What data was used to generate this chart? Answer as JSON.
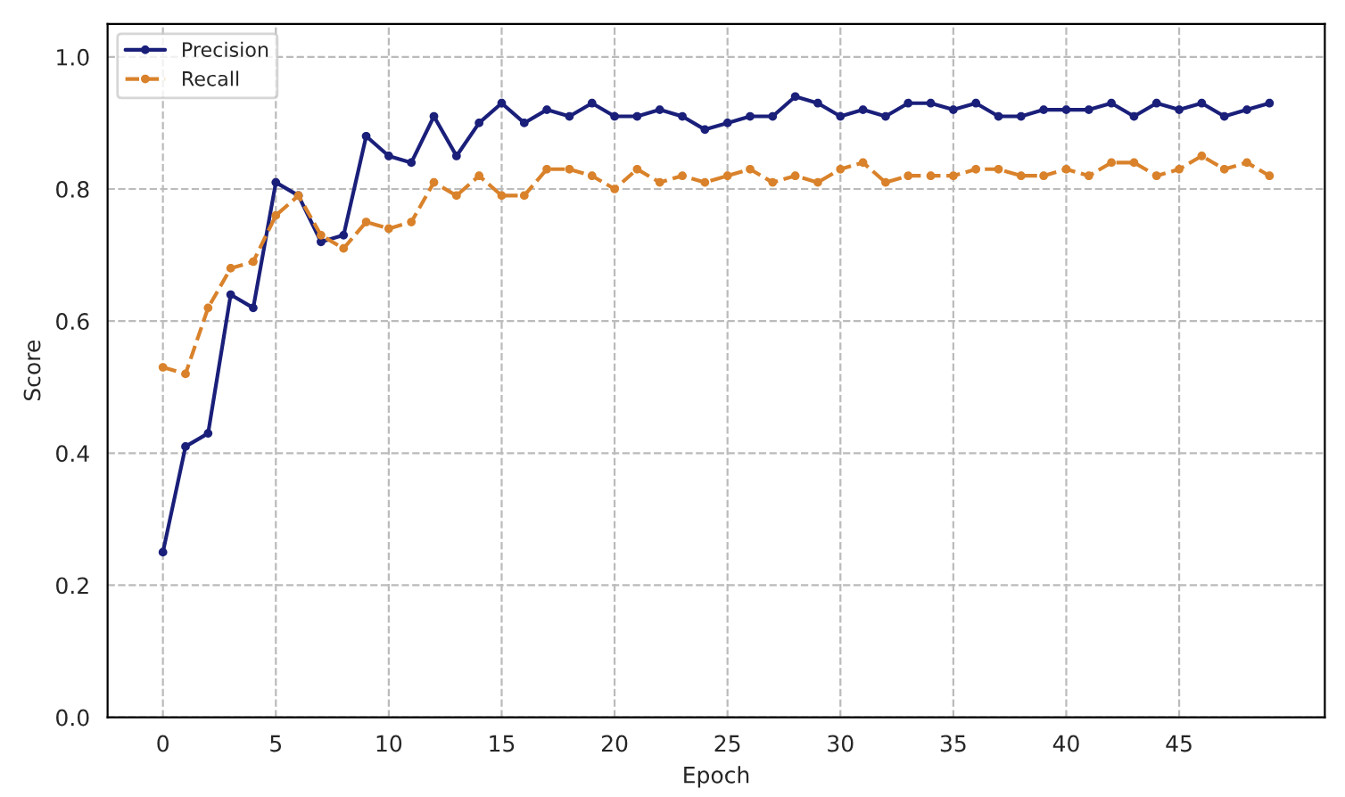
{
  "chart_data": {
    "type": "line",
    "xlabel": "Epoch",
    "ylabel": "Score",
    "x": [
      0,
      1,
      2,
      3,
      4,
      5,
      6,
      7,
      8,
      9,
      10,
      11,
      12,
      13,
      14,
      15,
      16,
      17,
      18,
      19,
      20,
      21,
      22,
      23,
      24,
      25,
      26,
      27,
      28,
      29,
      30,
      31,
      32,
      33,
      34,
      35,
      36,
      37,
      38,
      39,
      40,
      41,
      42,
      43,
      44,
      45,
      46,
      47,
      48,
      49
    ],
    "series": [
      {
        "name": "Precision",
        "color": "#1a1f7a",
        "line_style": "solid",
        "values": [
          0.25,
          0.41,
          0.43,
          0.64,
          0.62,
          0.81,
          0.79,
          0.72,
          0.73,
          0.88,
          0.85,
          0.84,
          0.91,
          0.85,
          0.9,
          0.93,
          0.9,
          0.92,
          0.91,
          0.93,
          0.91,
          0.91,
          0.92,
          0.91,
          0.89,
          0.9,
          0.91,
          0.91,
          0.94,
          0.93,
          0.91,
          0.92,
          0.91,
          0.93,
          0.93,
          0.92,
          0.93,
          0.91,
          0.91,
          0.92,
          0.92,
          0.92,
          0.93,
          0.91,
          0.93,
          0.92,
          0.93,
          0.91,
          0.92,
          0.93
        ]
      },
      {
        "name": "Recall",
        "color": "#d9822b",
        "line_style": "dashed",
        "values": [
          0.53,
          0.52,
          0.62,
          0.68,
          0.69,
          0.76,
          0.79,
          0.73,
          0.71,
          0.75,
          0.74,
          0.75,
          0.81,
          0.79,
          0.82,
          0.79,
          0.79,
          0.83,
          0.83,
          0.82,
          0.8,
          0.83,
          0.81,
          0.82,
          0.81,
          0.82,
          0.83,
          0.81,
          0.82,
          0.81,
          0.83,
          0.84,
          0.81,
          0.82,
          0.82,
          0.82,
          0.83,
          0.83,
          0.82,
          0.82,
          0.83,
          0.82,
          0.84,
          0.84,
          0.82,
          0.83,
          0.85,
          0.83,
          0.84,
          0.82
        ]
      }
    ],
    "xlim": [
      -2.45,
      51.45
    ],
    "xticks": [
      0,
      5,
      10,
      15,
      20,
      25,
      30,
      35,
      40,
      45
    ],
    "ylim": [
      0,
      1.05
    ],
    "yticks": [
      {
        "value": 0,
        "label": "0.0"
      },
      {
        "value": 0.2,
        "label": "0.2"
      },
      {
        "value": 0.4,
        "label": "0.4"
      },
      {
        "value": 0.6,
        "label": "0.6"
      },
      {
        "value": 0.8,
        "label": "0.8"
      },
      {
        "value": 1.0,
        "label": "1.0"
      }
    ],
    "grid": true,
    "legend": "top left",
    "marker": "circle"
  }
}
